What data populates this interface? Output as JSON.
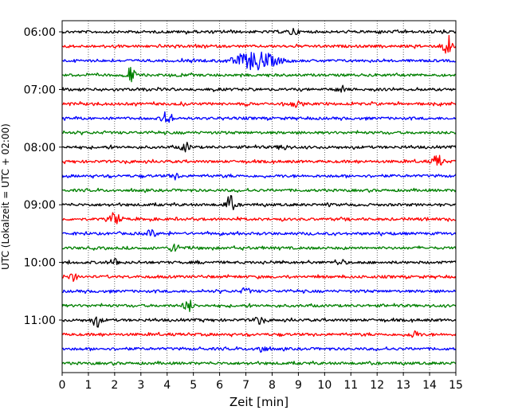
{
  "chart_data": {
    "type": "line",
    "title": "",
    "xlabel": "Zeit  [min]",
    "ylabel": "UTC (Lokalzeit = UTC + 02:00)",
    "xlim": [
      0,
      15
    ],
    "x_ticks": [
      0,
      1,
      2,
      3,
      4,
      5,
      6,
      7,
      8,
      9,
      10,
      11,
      12,
      13,
      14,
      15
    ],
    "vertical_grid": "dotted",
    "row_interval_min": 15,
    "time_ticks": [
      "06:00",
      "07:00",
      "08:00",
      "09:00",
      "10:00",
      "11:00"
    ],
    "color_cycle": [
      "#000000",
      "#ff0000",
      "#0000ff",
      "#008000"
    ],
    "rows": [
      {
        "start": "06:00",
        "color": "#000000",
        "events": [
          {
            "x": 8.8,
            "amp": 0.4
          }
        ]
      },
      {
        "start": "06:15",
        "color": "#ff0000",
        "events": [
          {
            "x": 14.7,
            "amp": 1.3
          }
        ]
      },
      {
        "start": "06:30",
        "color": "#0000ff",
        "events": [
          {
            "x": 7.4,
            "amp": 1.0,
            "wide": true
          }
        ]
      },
      {
        "start": "06:45",
        "color": "#008000",
        "events": [
          {
            "x": 2.6,
            "amp": 0.9
          }
        ]
      },
      {
        "start": "07:00",
        "color": "#000000",
        "events": [
          {
            "x": 10.6,
            "amp": 0.3
          }
        ]
      },
      {
        "start": "07:15",
        "color": "#ff0000",
        "events": [
          {
            "x": 8.9,
            "amp": 0.3
          }
        ]
      },
      {
        "start": "07:30",
        "color": "#0000ff",
        "events": [
          {
            "x": 4.0,
            "amp": 0.9
          }
        ]
      },
      {
        "start": "07:45",
        "color": "#008000",
        "events": []
      },
      {
        "start": "08:00",
        "color": "#000000",
        "events": [
          {
            "x": 4.7,
            "amp": 0.5
          },
          {
            "x": 8.4,
            "amp": 0.3
          }
        ]
      },
      {
        "start": "08:15",
        "color": "#ff0000",
        "events": [
          {
            "x": 14.3,
            "amp": 0.8
          }
        ]
      },
      {
        "start": "08:30",
        "color": "#0000ff",
        "events": [
          {
            "x": 4.3,
            "amp": 0.3
          }
        ]
      },
      {
        "start": "08:45",
        "color": "#008000",
        "events": []
      },
      {
        "start": "09:00",
        "color": "#000000",
        "events": [
          {
            "x": 6.4,
            "amp": 1.0
          }
        ]
      },
      {
        "start": "09:15",
        "color": "#ff0000",
        "events": [
          {
            "x": 2.0,
            "amp": 0.8
          }
        ]
      },
      {
        "start": "09:30",
        "color": "#0000ff",
        "events": [
          {
            "x": 3.4,
            "amp": 0.4
          }
        ]
      },
      {
        "start": "09:45",
        "color": "#008000",
        "events": [
          {
            "x": 4.3,
            "amp": 0.6
          }
        ]
      },
      {
        "start": "10:00",
        "color": "#000000",
        "events": [
          {
            "x": 2.0,
            "amp": 0.4
          },
          {
            "x": 10.6,
            "amp": 0.3
          }
        ]
      },
      {
        "start": "10:15",
        "color": "#ff0000",
        "events": [
          {
            "x": 0.4,
            "amp": 0.4
          }
        ]
      },
      {
        "start": "10:30",
        "color": "#0000ff",
        "events": [
          {
            "x": 7.0,
            "amp": 0.3
          }
        ]
      },
      {
        "start": "10:45",
        "color": "#008000",
        "events": [
          {
            "x": 4.8,
            "amp": 0.7
          }
        ]
      },
      {
        "start": "11:00",
        "color": "#000000",
        "events": [
          {
            "x": 1.3,
            "amp": 0.7
          },
          {
            "x": 7.5,
            "amp": 0.4
          }
        ]
      },
      {
        "start": "11:15",
        "color": "#ff0000",
        "events": [
          {
            "x": 13.4,
            "amp": 0.4
          }
        ]
      },
      {
        "start": "11:30",
        "color": "#0000ff",
        "events": [
          {
            "x": 7.6,
            "amp": 0.4
          }
        ]
      },
      {
        "start": "11:45",
        "color": "#008000",
        "events": []
      }
    ]
  }
}
